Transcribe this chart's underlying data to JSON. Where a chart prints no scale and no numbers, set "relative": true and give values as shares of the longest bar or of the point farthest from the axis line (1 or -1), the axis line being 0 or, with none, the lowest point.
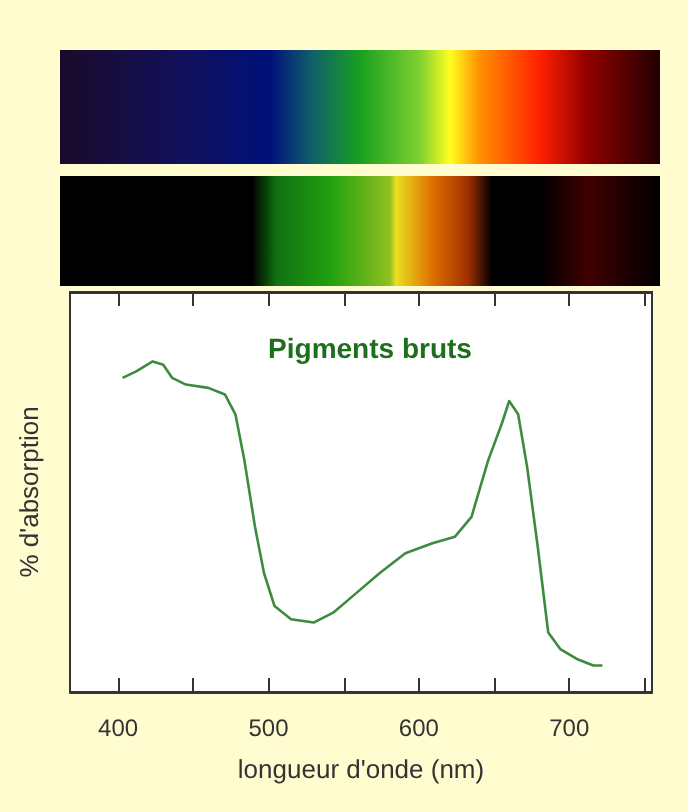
{
  "chart_data": {
    "type": "line",
    "relative": true,
    "title": "Pigments bruts",
    "xlabel": "longueur d'onde (nm)",
    "ylabel": "% d'absorption",
    "xlim": [
      368,
      755
    ],
    "xticks": [
      {
        "value": 400,
        "label": "400"
      },
      {
        "value": 450,
        "label": null
      },
      {
        "value": 500,
        "label": "500"
      },
      {
        "value": 550,
        "label": null
      },
      {
        "value": 600,
        "label": "600"
      },
      {
        "value": 650,
        "label": null
      },
      {
        "value": 700,
        "label": "700"
      },
      {
        "value": 750,
        "label": null
      }
    ],
    "grid": false,
    "marker": "none",
    "line_style": "solid",
    "series": [
      {
        "color": "#3e8a3e",
        "x": [
          403,
          412,
          423,
          430,
          436,
          445,
          460,
          471,
          478,
          484,
          491,
          497,
          504,
          515,
          530,
          543,
          556,
          574,
          591,
          609,
          624,
          635,
          646,
          655,
          660,
          666,
          672,
          679,
          686,
          694,
          705,
          716,
          722
        ],
        "values": [
          0.95,
          0.97,
          1.0,
          0.99,
          0.95,
          0.93,
          0.92,
          0.9,
          0.84,
          0.7,
          0.5,
          0.36,
          0.26,
          0.22,
          0.21,
          0.24,
          0.29,
          0.36,
          0.42,
          0.45,
          0.47,
          0.53,
          0.7,
          0.81,
          0.88,
          0.84,
          0.68,
          0.44,
          0.18,
          0.13,
          0.1,
          0.08,
          0.08
        ]
      }
    ]
  }
}
